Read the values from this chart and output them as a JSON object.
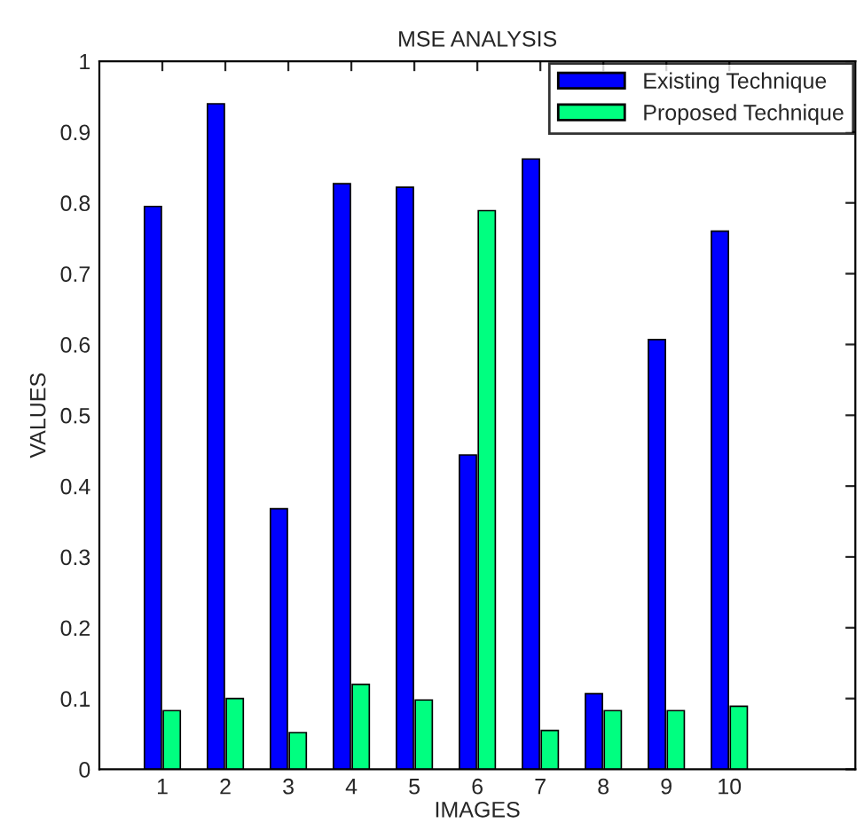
{
  "chart_data": {
    "type": "bar",
    "title": "MSE ANALYSIS",
    "xlabel": "IMAGES",
    "ylabel": "VALUES",
    "x": [
      1,
      2,
      3,
      4,
      5,
      6,
      7,
      8,
      9,
      10
    ],
    "series": [
      {
        "name": "Existing Technique",
        "color": "#0000ff",
        "values": [
          0.795,
          0.94,
          0.368,
          0.827,
          0.822,
          0.444,
          0.862,
          0.107,
          0.607,
          0.76
        ]
      },
      {
        "name": "Proposed Technique",
        "color": "#00ff80",
        "values": [
          0.083,
          0.1,
          0.052,
          0.12,
          0.098,
          0.789,
          0.055,
          0.083,
          0.083,
          0.089
        ]
      }
    ],
    "xlim": [
      0,
      12
    ],
    "xticks": [
      1,
      2,
      3,
      4,
      5,
      6,
      7,
      8,
      9,
      10
    ],
    "ylim": [
      0,
      1
    ],
    "yticks": [
      0,
      0.1,
      0.2,
      0.3,
      0.4,
      0.5,
      0.6,
      0.7,
      0.8,
      0.9,
      1
    ],
    "grid": false,
    "legend": "top right"
  }
}
